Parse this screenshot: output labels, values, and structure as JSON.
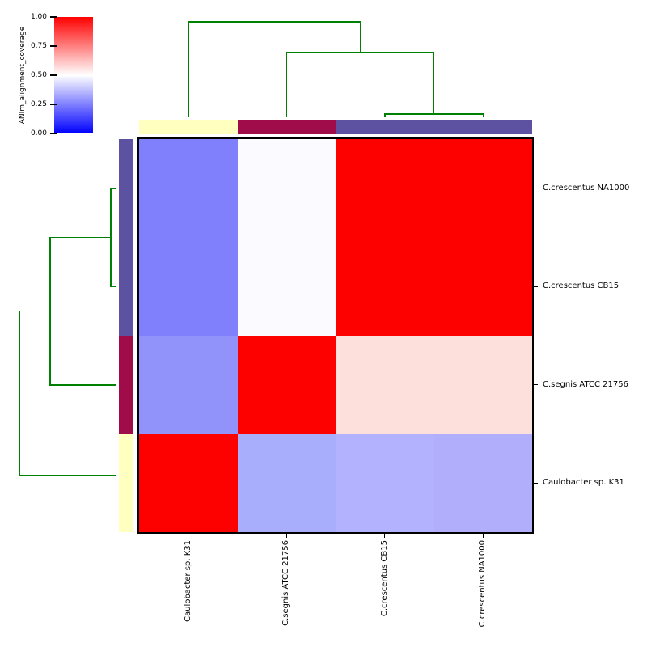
{
  "colorbar": {
    "label": "ANIm_alignment_coverage",
    "tick_labels": [
      "1.00",
      "0.75",
      "0.50",
      "0.25",
      "0.00"
    ],
    "gradient_top": "#ff0000",
    "gradient_mid": "#ffffff",
    "gradient_bottom": "#0000ff"
  },
  "chart_data": {
    "type": "heatmap",
    "title": "",
    "colorbar_label": "ANIm_alignment_coverage",
    "value_range": [
      0.0,
      1.0
    ],
    "colormap": "blue-white-red (bwr)",
    "legend_position": "top-left",
    "grid": false,
    "rows": [
      "C.crescentus NA1000",
      "C.crescentus CB15",
      "C.segnis ATCC 21756",
      "Caulobacter sp. K31"
    ],
    "columns": [
      "Caulobacter sp. K31",
      "C.segnis ATCC 21756",
      "C.crescentus CB15",
      "C.crescentus NA1000"
    ],
    "values": [
      [
        0.25,
        0.49,
        1.0,
        1.0
      ],
      [
        0.25,
        0.49,
        1.0,
        1.0
      ],
      [
        0.28,
        1.0,
        0.56,
        0.56
      ],
      [
        1.0,
        0.34,
        0.35,
        0.35
      ]
    ],
    "cell_colors": [
      [
        "#8080fc",
        "#fbfaff",
        "#fd0000",
        "#fd0000"
      ],
      [
        "#8080fc",
        "#fbfaff",
        "#fd0000",
        "#fd0000"
      ],
      [
        "#9192fa",
        "#fd0000",
        "#fddfdc",
        "#fddfdc"
      ],
      [
        "#fd0000",
        "#a9aefc",
        "#b2b2fe",
        "#b1aefc"
      ]
    ],
    "row_class_colors": [
      "#5d51a1",
      "#5d51a1",
      "#a00c49",
      "#ffffc0"
    ],
    "col_class_colors": [
      "#ffffc0",
      "#a00c49",
      "#5d51a1",
      "#5d51a1"
    ],
    "dendrogram_color": "#008000",
    "col_dendrogram": {
      "leaf_order": [
        "Caulobacter sp. K31",
        "C.segnis ATCC 21756",
        "C.crescentus CB15",
        "C.crescentus NA1000"
      ],
      "links": [
        {
          "a": 2,
          "b": 3,
          "h": 0.025
        },
        {
          "a": 1,
          "b": "L0",
          "h": 0.63
        },
        {
          "a": 0,
          "b": "L1",
          "h": 0.93
        }
      ]
    },
    "row_dendrogram": {
      "leaf_order": [
        "C.crescentus NA1000",
        "C.crescentus CB15",
        "C.segnis ATCC 21756",
        "Caulobacter sp. K31"
      ],
      "links": [
        {
          "a": 0,
          "b": 1,
          "h": 0.05
        },
        {
          "a": "L0",
          "b": 2,
          "h": 0.65
        },
        {
          "a": "L1",
          "b": 3,
          "h": 0.95
        }
      ]
    }
  }
}
